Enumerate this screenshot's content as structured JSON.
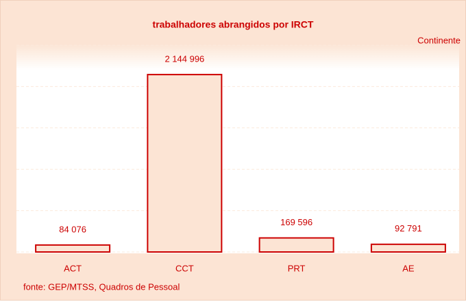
{
  "chart_data": {
    "type": "bar",
    "title": "trabalhadores abrangidos por IRCT",
    "subtitle": "Continente",
    "source": "fonte: GEP/MTSS, Quadros de Pessoal",
    "categories": [
      "ACT",
      "CCT",
      "PRT",
      "AE"
    ],
    "values": [
      84076,
      2144996,
      169596,
      92791
    ],
    "value_labels": [
      "84 076",
      "2 144 996",
      "169 596",
      "92 791"
    ],
    "color": "#cc0000",
    "ylim": [
      0,
      2500000
    ],
    "yticks": [
      0,
      500000,
      1000000,
      1500000,
      2000000,
      2500000
    ],
    "grid": true
  }
}
